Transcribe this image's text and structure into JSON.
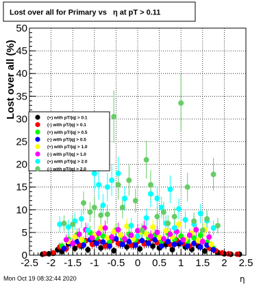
{
  "footer": {
    "timestamp": "Mon Oct 19 08:32:44 2020",
    "x_axis_symbol": "η"
  },
  "colors": {
    "background": "#ffffff",
    "frame": "#000000",
    "grid": "#000000"
  },
  "chart_data": {
    "type": "scatter",
    "title": "Lost over all for Primary vs   η at pT > 0.11",
    "xlabel": "η",
    "ylabel": "Lost over all (%)",
    "xlim": [
      -2.5,
      2.5
    ],
    "ylim": [
      0,
      50
    ],
    "grid": true,
    "legend_position": "left-middle",
    "x_ticks": [
      "-2.5",
      "-2",
      "-1.5",
      "-1",
      "-0.5",
      "0",
      "0.5",
      "1",
      "1.5",
      "2",
      "2.5"
    ],
    "y_ticks": [
      "0",
      "5",
      "10",
      "15",
      "20",
      "25",
      "30",
      "35",
      "40",
      "45",
      "50"
    ],
    "series": [
      {
        "name": "(+) with pT/|q| > 0.1",
        "color": "#000000",
        "points": [
          [
            -2.2,
            0.2
          ],
          [
            -2.05,
            0.3
          ],
          [
            -1.95,
            0.4
          ],
          [
            -1.85,
            1.2
          ],
          [
            -1.75,
            0.8
          ],
          [
            -1.6,
            2.5
          ],
          [
            -1.45,
            1.5
          ],
          [
            -1.3,
            2.0
          ],
          [
            -1.15,
            1.2
          ],
          [
            -1.0,
            2.8
          ],
          [
            -0.85,
            1.6
          ],
          [
            -0.7,
            2.2
          ],
          [
            -0.55,
            1.0
          ],
          [
            -0.4,
            2.5
          ],
          [
            -0.25,
            1.8
          ],
          [
            -0.1,
            2.2
          ],
          [
            0.05,
            1.4
          ],
          [
            0.2,
            2.7
          ],
          [
            0.35,
            2.0
          ],
          [
            0.5,
            1.6
          ],
          [
            0.65,
            2.3
          ],
          [
            0.8,
            1.2
          ],
          [
            0.95,
            2.5
          ],
          [
            1.1,
            1.8
          ],
          [
            1.25,
            1.3
          ],
          [
            1.4,
            2.0
          ],
          [
            1.55,
            0.9
          ],
          [
            1.7,
            1.5
          ],
          [
            1.85,
            0.6
          ],
          [
            2.0,
            0.3
          ],
          [
            2.15,
            0.2
          ],
          [
            2.35,
            0.2
          ]
        ]
      },
      {
        "name": "(-) with pT/|q| > 0.1",
        "color": "#ff0000",
        "points": [
          [
            -2.15,
            0.3
          ],
          [
            -1.95,
            0.5
          ],
          [
            -1.8,
            1.8
          ],
          [
            -1.65,
            1.4
          ],
          [
            -1.5,
            2.6
          ],
          [
            -1.35,
            2.2
          ],
          [
            -1.2,
            3.2
          ],
          [
            -1.05,
            2.4
          ],
          [
            -0.9,
            3.0
          ],
          [
            -0.75,
            2.0
          ],
          [
            -0.6,
            3.2
          ],
          [
            -0.45,
            2.6
          ],
          [
            -0.3,
            3.4
          ],
          [
            -0.15,
            2.2
          ],
          [
            0.0,
            3.0
          ],
          [
            0.15,
            2.5
          ],
          [
            0.3,
            3.6
          ],
          [
            0.45,
            2.8
          ],
          [
            0.6,
            3.2
          ],
          [
            0.75,
            2.4
          ],
          [
            0.9,
            3.3
          ],
          [
            1.05,
            2.6
          ],
          [
            1.2,
            2.0
          ],
          [
            1.35,
            2.8
          ],
          [
            1.5,
            3.0
          ],
          [
            1.65,
            1.6
          ],
          [
            1.8,
            1.0
          ],
          [
            1.95,
            0.5
          ],
          [
            2.1,
            0.3
          ],
          [
            2.3,
            0.2
          ]
        ]
      },
      {
        "name": "(+) with pT/|q| > 0.5",
        "color": "#00ff00",
        "points": [
          [
            -1.75,
            2.0
          ],
          [
            -1.6,
            3.5
          ],
          [
            -1.4,
            4.5
          ],
          [
            -1.25,
            3.0
          ],
          [
            -1.1,
            5.0
          ],
          [
            -0.95,
            3.8
          ],
          [
            -0.8,
            4.2
          ],
          [
            -0.65,
            3.0
          ],
          [
            -0.5,
            5.5
          ],
          [
            -0.35,
            3.6
          ],
          [
            -0.2,
            4.6
          ],
          [
            -0.05,
            3.4
          ],
          [
            0.1,
            5.2
          ],
          [
            0.25,
            3.9
          ],
          [
            0.4,
            4.4
          ],
          [
            0.55,
            3.1
          ],
          [
            0.7,
            4.8
          ],
          [
            0.85,
            3.5
          ],
          [
            1.0,
            4.2
          ],
          [
            1.15,
            3.0
          ],
          [
            1.3,
            3.8
          ],
          [
            1.45,
            4.4
          ],
          [
            1.6,
            2.8
          ],
          [
            1.75,
            1.5
          ]
        ]
      },
      {
        "name": "(-) with pT/|q| > 0.5",
        "color": "#0000ff",
        "points": [
          [
            -1.7,
            1.5
          ],
          [
            -1.55,
            2.6
          ],
          [
            -1.4,
            3.0
          ],
          [
            -1.25,
            2.2
          ],
          [
            -1.1,
            3.4
          ],
          [
            -0.95,
            2.6
          ],
          [
            -0.8,
            2.9
          ],
          [
            -0.65,
            2.0
          ],
          [
            -0.5,
            3.6
          ],
          [
            -0.35,
            2.4
          ],
          [
            -0.2,
            3.0
          ],
          [
            -0.05,
            2.2
          ],
          [
            0.1,
            3.2
          ],
          [
            0.25,
            2.6
          ],
          [
            0.4,
            3.4
          ],
          [
            0.55,
            2.0
          ],
          [
            0.7,
            3.0
          ],
          [
            0.85,
            2.4
          ],
          [
            1.0,
            2.8
          ],
          [
            1.15,
            2.0
          ],
          [
            1.3,
            2.6
          ],
          [
            1.45,
            1.8
          ],
          [
            1.6,
            2.2
          ],
          [
            1.75,
            1.2
          ]
        ]
      },
      {
        "name": "(+) with pT/|q| > 1.0",
        "color": "#ffff00",
        "points": [
          [
            -1.6,
            3.0
          ],
          [
            -1.45,
            4.0
          ],
          [
            -1.3,
            3.4
          ],
          [
            -1.15,
            5.5
          ],
          [
            -1.0,
            4.2
          ],
          [
            -0.85,
            6.0
          ],
          [
            -0.7,
            3.8
          ],
          [
            -0.55,
            5.2
          ],
          [
            -0.4,
            4.4
          ],
          [
            -0.25,
            6.4
          ],
          [
            -0.1,
            3.6
          ],
          [
            0.05,
            5.0
          ],
          [
            0.2,
            4.6
          ],
          [
            0.35,
            6.2
          ],
          [
            0.5,
            3.9
          ],
          [
            0.65,
            5.4
          ],
          [
            0.8,
            4.0
          ],
          [
            0.95,
            6.8
          ],
          [
            1.1,
            3.5
          ],
          [
            1.25,
            4.8
          ],
          [
            1.4,
            3.2
          ],
          [
            1.55,
            5.6
          ],
          [
            1.7,
            2.4
          ]
        ]
      },
      {
        "name": "(-) with pT/|q| > 1.0",
        "color": "#ff00ff",
        "points": [
          [
            -1.65,
            3.4
          ],
          [
            -1.5,
            2.6
          ],
          [
            -1.35,
            4.6
          ],
          [
            -1.2,
            5.6
          ],
          [
            -1.05,
            3.8
          ],
          [
            -0.9,
            4.8
          ],
          [
            -0.75,
            6.0
          ],
          [
            -0.6,
            4.0
          ],
          [
            -0.45,
            5.6
          ],
          [
            -0.3,
            3.6
          ],
          [
            -0.15,
            4.4
          ],
          [
            0.0,
            5.4
          ],
          [
            0.15,
            6.0
          ],
          [
            0.3,
            4.2
          ],
          [
            0.45,
            5.0
          ],
          [
            0.6,
            3.6
          ],
          [
            0.75,
            4.6
          ],
          [
            0.9,
            5.2
          ],
          [
            1.05,
            3.4
          ],
          [
            1.2,
            4.4
          ],
          [
            1.35,
            5.6
          ],
          [
            1.5,
            3.0
          ],
          [
            1.65,
            4.0
          ]
        ]
      },
      {
        "name": "(+) with pT/|q| > 2.0",
        "color": "#00ffff",
        "points": [
          [
            -1.8,
            6.8
          ],
          [
            -1.6,
            6.2
          ],
          [
            -1.45,
            7.5
          ],
          [
            -1.3,
            8.0
          ],
          [
            -1.15,
            5.5
          ],
          [
            -1.0,
            18.0
          ],
          [
            -0.9,
            15.5
          ],
          [
            -0.8,
            11.0
          ],
          [
            -0.7,
            15.0
          ],
          [
            -0.6,
            16.5
          ],
          [
            -0.45,
            18.0
          ],
          [
            -0.3,
            12.5
          ],
          [
            -0.15,
            6.5
          ],
          [
            0.0,
            4.2
          ],
          [
            0.2,
            8.2
          ],
          [
            0.3,
            13.5
          ],
          [
            0.45,
            12.5
          ],
          [
            0.55,
            10.5
          ],
          [
            0.65,
            7.0
          ],
          [
            0.75,
            14.5
          ],
          [
            0.85,
            6.0
          ],
          [
            0.95,
            10.2
          ],
          [
            1.1,
            7.8
          ],
          [
            1.3,
            6.8
          ],
          [
            1.45,
            9.2
          ],
          [
            1.6,
            7.6
          ],
          [
            1.75,
            6.0
          ]
        ]
      },
      {
        "name": "(-) with pT/|q| > 2.0",
        "color": "#66cc66",
        "points": [
          [
            -1.7,
            7.0
          ],
          [
            -1.5,
            6.8
          ],
          [
            -1.25,
            11.5
          ],
          [
            -1.1,
            9.5
          ],
          [
            -1.0,
            10.5
          ],
          [
            -0.85,
            8.8
          ],
          [
            -0.7,
            9.0
          ],
          [
            -0.55,
            30.5
          ],
          [
            -0.45,
            15.5
          ],
          [
            -0.35,
            10.5
          ],
          [
            -0.2,
            16.5
          ],
          [
            -0.05,
            12.0
          ],
          [
            0.1,
            5.5
          ],
          [
            0.2,
            21.0
          ],
          [
            0.3,
            15.5
          ],
          [
            0.45,
            8.5
          ],
          [
            0.6,
            9.5
          ],
          [
            0.7,
            7.0
          ],
          [
            0.85,
            8.5
          ],
          [
            1.0,
            33.5
          ],
          [
            1.15,
            15.0
          ],
          [
            1.3,
            7.5
          ],
          [
            1.5,
            5.5
          ],
          [
            1.6,
            8.0
          ],
          [
            1.75,
            17.8
          ],
          [
            1.85,
            6.5
          ]
        ]
      }
    ]
  }
}
